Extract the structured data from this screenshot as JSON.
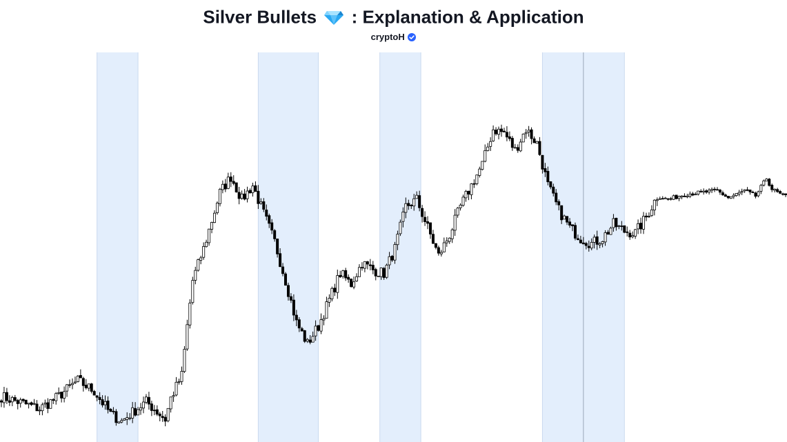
{
  "header": {
    "title_left": "Silver Bullets",
    "title_right": ": Explanation & Application",
    "gem_icon": "gem-icon",
    "author": "cryptoH",
    "verified_icon": "verified-badge-icon"
  },
  "colors": {
    "background": "#ffffff",
    "highlight_fill": "#e3eefc",
    "highlight_border": "#c9d9ef",
    "candle_bull_fill": "#ffffff",
    "candle_bear_fill": "#000000",
    "candle_outline": "#000000",
    "gem_blue": "#2aa8f2",
    "verified_blue": "#2962ff"
  },
  "chart_data": {
    "type": "candlestick",
    "title": "",
    "xlabel": "",
    "ylabel": "",
    "grid": false,
    "ylim": [
      0,
      100
    ],
    "price_path": [
      [
        0,
        10.0
      ],
      [
        8,
        8.0
      ],
      [
        14,
        6.5
      ],
      [
        20,
        9.5
      ],
      [
        28,
        14.5
      ],
      [
        34,
        11.5
      ],
      [
        40,
        5.0
      ],
      [
        44,
        3.0
      ],
      [
        48,
        5.5
      ],
      [
        53,
        8.5
      ],
      [
        60,
        3.5
      ],
      [
        62,
        9.5
      ],
      [
        66,
        16.0
      ],
      [
        68,
        30.0
      ],
      [
        70,
        43.0
      ],
      [
        74,
        52.0
      ],
      [
        80,
        68.0
      ],
      [
        84,
        72.5
      ],
      [
        88,
        66.0
      ],
      [
        92,
        70.0
      ],
      [
        96,
        62.0
      ],
      [
        100,
        54.0
      ],
      [
        104,
        43.0
      ],
      [
        108,
        31.0
      ],
      [
        112,
        25.0
      ],
      [
        116,
        30.0
      ],
      [
        120,
        37.5
      ],
      [
        124,
        45.0
      ],
      [
        128,
        42.0
      ],
      [
        132,
        48.0
      ],
      [
        136,
        46.0
      ],
      [
        140,
        45.0
      ],
      [
        144,
        52.0
      ],
      [
        148,
        64.0
      ],
      [
        152,
        66.0
      ],
      [
        156,
        58.0
      ],
      [
        160,
        50.0
      ],
      [
        164,
        56.0
      ],
      [
        168,
        64.0
      ],
      [
        172,
        70.0
      ],
      [
        176,
        76.0
      ],
      [
        180,
        86.0
      ],
      [
        184,
        85.0
      ],
      [
        188,
        80.0
      ],
      [
        192,
        86.0
      ],
      [
        196,
        82.0
      ],
      [
        200,
        70.0
      ],
      [
        204,
        63.0
      ],
      [
        208,
        58.0
      ],
      [
        212,
        55.0
      ],
      [
        216,
        53.5
      ],
      [
        220,
        55.0
      ],
      [
        224,
        59.0
      ],
      [
        228,
        57.0
      ],
      [
        232,
        56.5
      ],
      [
        236,
        61.0
      ],
      [
        240,
        67.0
      ],
      [
        244,
        66.0
      ],
      [
        250,
        67.5
      ],
      [
        256,
        68.0
      ],
      [
        262,
        68.5
      ],
      [
        266,
        66.5
      ],
      [
        272,
        68.5
      ],
      [
        276,
        67.0
      ],
      [
        280,
        72.0
      ],
      [
        282,
        69.0
      ],
      [
        286,
        67.0
      ]
    ],
    "session_highlights": [
      {
        "start": 35.5,
        "end": 50.5
      },
      {
        "start": 94.5,
        "end": 116.5
      },
      {
        "start": 139,
        "end": 154
      },
      {
        "start": 198.5,
        "end": 228.5,
        "divider_at": 213.5
      }
    ]
  }
}
